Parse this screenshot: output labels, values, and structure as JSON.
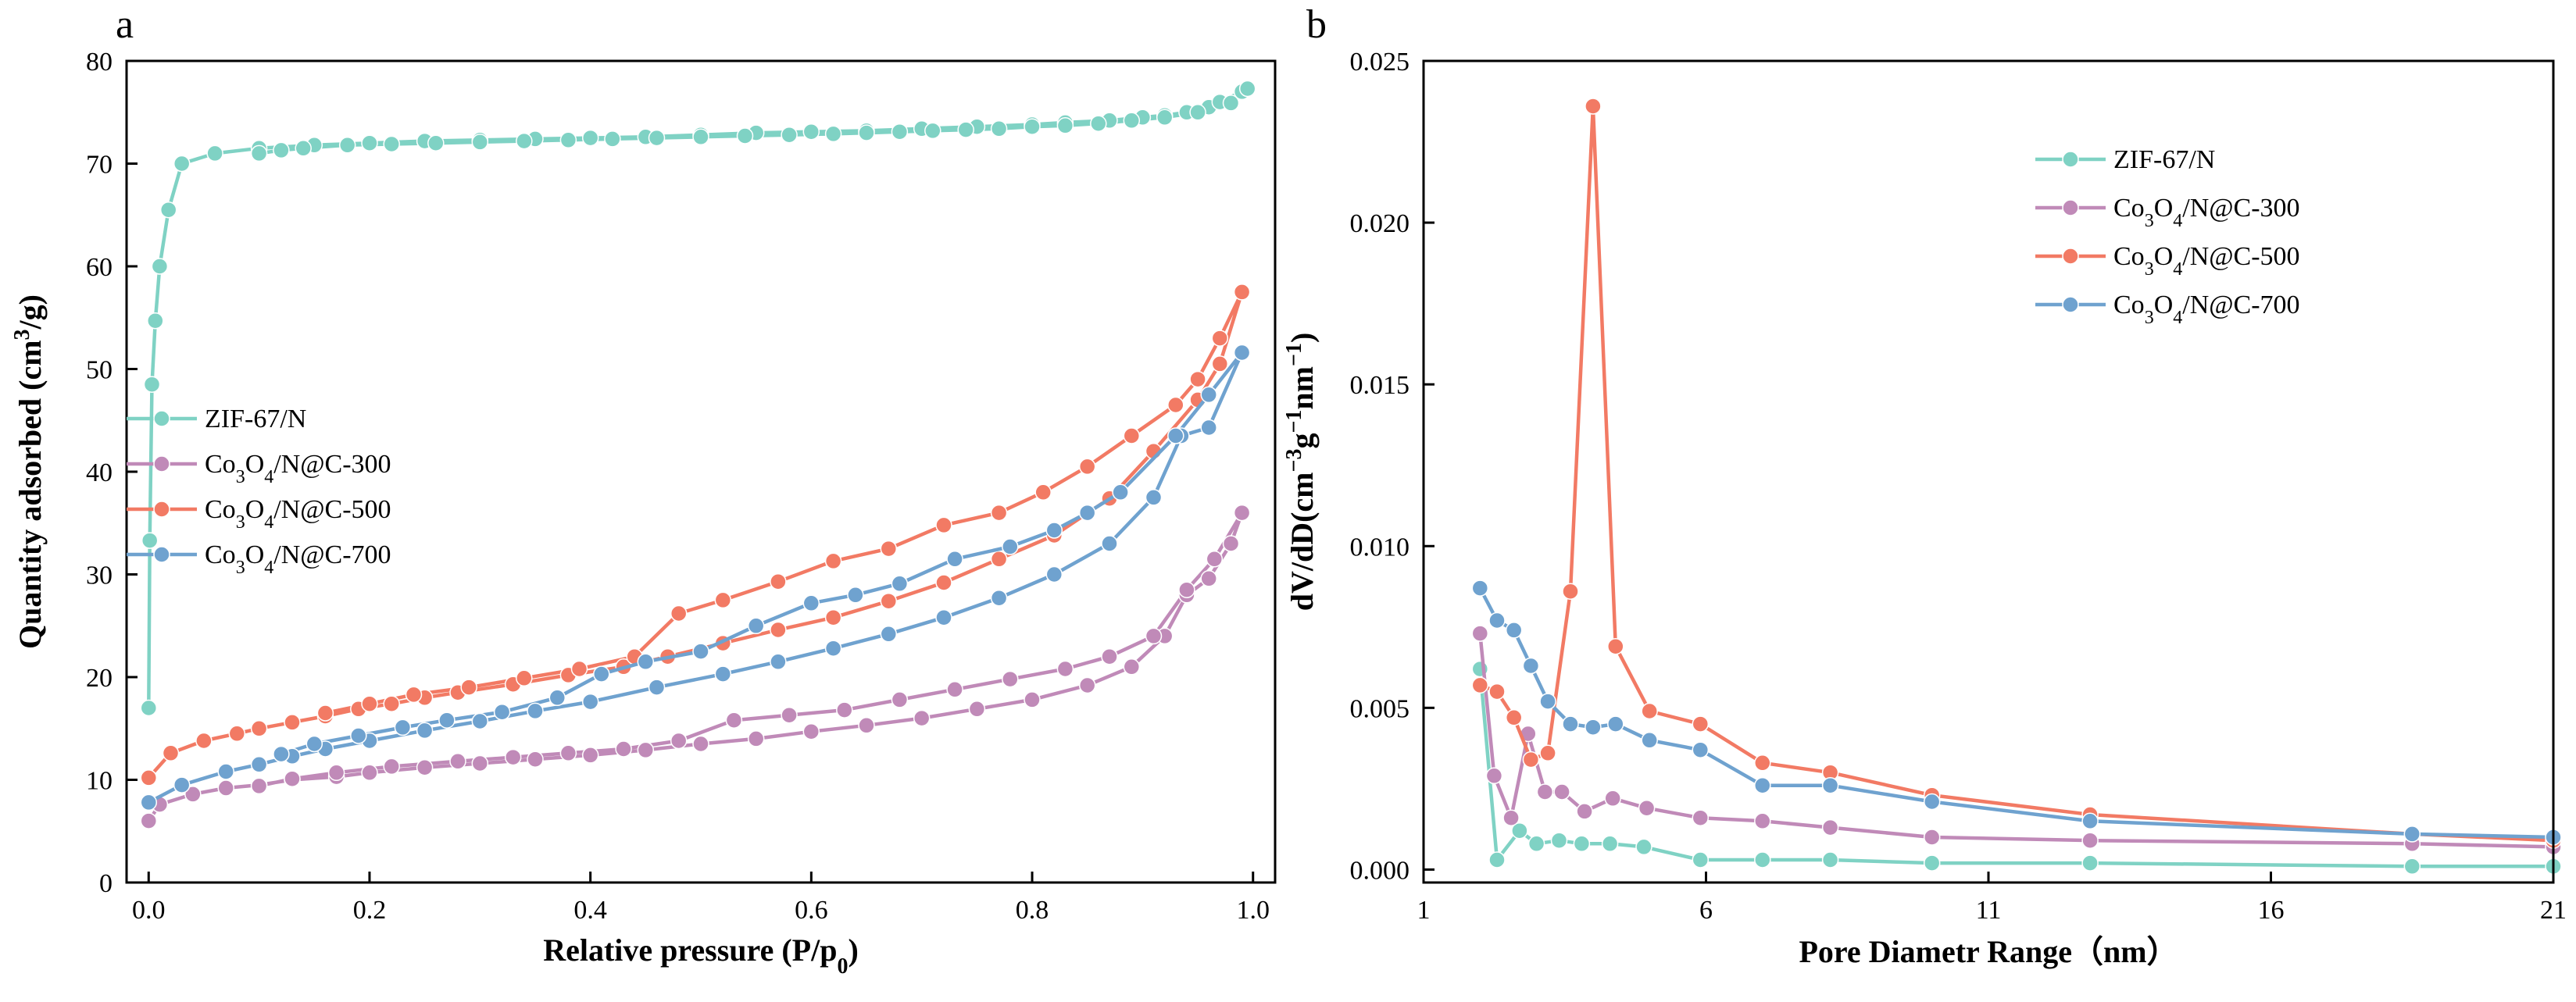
{
  "colors": {
    "zif": "#7fd2c4",
    "c300": "#c08ab8",
    "c500": "#f27a64",
    "c700": "#6fa2cf"
  },
  "chart_data": [
    {
      "panel_label": "a",
      "type": "line",
      "xlabel": "Relative pressure (P/p",
      "xlabel_sub": "0",
      "xlabel_end": ")",
      "ylabel": "Quantity adsorbed (cm",
      "ylabel_sup": "3",
      "ylabel_end": "/g)",
      "xlim": [
        -0.02,
        1.02
      ],
      "ylim": [
        0,
        80
      ],
      "xticks": [
        0.0,
        0.2,
        0.4,
        0.6,
        0.8,
        1.0
      ],
      "xtick_labels": [
        "0.0",
        "0.2",
        "0.4",
        "0.6",
        "0.8",
        "1.0"
      ],
      "yticks": [
        0,
        10,
        20,
        30,
        40,
        50,
        60,
        70,
        80
      ],
      "ytick_labels": [
        "0",
        "10",
        "20",
        "30",
        "40",
        "50",
        "60",
        "70",
        "80"
      ],
      "legend_position": "center-left",
      "series": [
        {
          "name": "ZIF-67/N",
          "name_parts": [
            "ZIF-67/N"
          ],
          "color_key": "zif",
          "x": [
            0.0,
            0.001,
            0.003,
            0.006,
            0.01,
            0.018,
            0.03,
            0.06,
            0.1,
            0.15,
            0.2,
            0.25,
            0.3,
            0.35,
            0.4,
            0.45,
            0.5,
            0.55,
            0.6,
            0.65,
            0.7,
            0.75,
            0.8,
            0.83,
            0.87,
            0.9,
            0.92,
            0.94,
            0.96,
            0.97,
            0.99,
            0.995,
            0.98,
            0.95,
            0.92,
            0.89,
            0.86,
            0.83,
            0.8,
            0.77,
            0.74,
            0.71,
            0.68,
            0.65,
            0.62,
            0.58,
            0.54,
            0.5,
            0.46,
            0.42,
            0.38,
            0.34,
            0.3,
            0.26,
            0.22,
            0.18,
            0.14,
            0.12,
            0.1
          ],
          "y": [
            17.0,
            33.3,
            48.5,
            54.7,
            60.0,
            65.5,
            70.0,
            71.0,
            71.5,
            71.8,
            72.0,
            72.2,
            72.3,
            72.4,
            72.5,
            72.6,
            72.8,
            73.0,
            73.1,
            73.2,
            73.4,
            73.6,
            73.8,
            74.0,
            74.2,
            74.5,
            74.7,
            75.0,
            75.5,
            76.0,
            77.0,
            77.3,
            75.9,
            75.0,
            74.5,
            74.2,
            73.9,
            73.7,
            73.6,
            73.4,
            73.3,
            73.2,
            73.1,
            73.0,
            72.9,
            72.8,
            72.7,
            72.6,
            72.5,
            72.4,
            72.3,
            72.2,
            72.1,
            72.0,
            71.9,
            71.8,
            71.5,
            71.3,
            71.0
          ]
        },
        {
          "name": "Co3O4/N@C-300",
          "name_parts": [
            "Co",
            "3",
            "O",
            "4",
            "/N@C-300"
          ],
          "color_key": "c300",
          "x": [
            0.0,
            0.01,
            0.04,
            0.07,
            0.1,
            0.13,
            0.17,
            0.2,
            0.25,
            0.3,
            0.35,
            0.4,
            0.45,
            0.5,
            0.55,
            0.6,
            0.65,
            0.7,
            0.75,
            0.8,
            0.85,
            0.89,
            0.92,
            0.94,
            0.96,
            0.98,
            0.99,
            0.99,
            0.965,
            0.94,
            0.91,
            0.87,
            0.83,
            0.78,
            0.73,
            0.68,
            0.63,
            0.58,
            0.53,
            0.48,
            0.43,
            0.38,
            0.33,
            0.28,
            0.22,
            0.17,
            0.13,
            0.1
          ],
          "y": [
            6.0,
            7.6,
            8.6,
            9.2,
            9.5,
            10.0,
            10.3,
            10.7,
            11.2,
            11.6,
            12.0,
            12.4,
            12.9,
            13.5,
            14.0,
            14.7,
            15.3,
            16.0,
            16.9,
            17.8,
            19.2,
            21.0,
            24.0,
            28.0,
            29.6,
            33.0,
            36.0,
            36.0,
            31.5,
            28.5,
            24.0,
            22.0,
            20.8,
            19.8,
            18.8,
            17.8,
            16.8,
            16.3,
            15.8,
            13.8,
            13.0,
            12.6,
            12.2,
            11.8,
            11.3,
            10.7,
            10.1,
            9.4
          ]
        },
        {
          "name": "Co3O4/N@C-500",
          "name_parts": [
            "Co",
            "3",
            "O",
            "4",
            "/N@C-500"
          ],
          "color_key": "c500",
          "x": [
            0.0,
            0.02,
            0.05,
            0.08,
            0.1,
            0.13,
            0.16,
            0.19,
            0.22,
            0.25,
            0.28,
            0.33,
            0.38,
            0.43,
            0.47,
            0.52,
            0.57,
            0.62,
            0.67,
            0.72,
            0.77,
            0.82,
            0.87,
            0.91,
            0.95,
            0.97,
            0.99,
            0.99,
            0.97,
            0.95,
            0.93,
            0.89,
            0.85,
            0.81,
            0.77,
            0.72,
            0.67,
            0.62,
            0.57,
            0.52,
            0.48,
            0.44,
            0.39,
            0.34,
            0.29,
            0.24,
            0.2,
            0.16
          ],
          "y": [
            10.2,
            12.6,
            13.8,
            14.5,
            15.0,
            15.6,
            16.2,
            16.9,
            17.4,
            18.0,
            18.5,
            19.3,
            20.2,
            21.0,
            22.0,
            23.3,
            24.6,
            25.8,
            27.4,
            29.2,
            31.5,
            33.8,
            37.4,
            42.0,
            47.0,
            50.5,
            57.5,
            57.5,
            53.0,
            49.0,
            46.5,
            43.5,
            40.5,
            38.0,
            36.0,
            34.8,
            32.5,
            31.3,
            29.3,
            27.5,
            26.2,
            22.0,
            20.8,
            19.9,
            19.0,
            18.3,
            17.4,
            16.5
          ]
        },
        {
          "name": "Co3O4/N@C-700",
          "name_parts": [
            "Co",
            "3",
            "O",
            "4",
            "/N@C-700"
          ],
          "color_key": "c700",
          "x": [
            0.0,
            0.03,
            0.07,
            0.1,
            0.13,
            0.16,
            0.2,
            0.25,
            0.3,
            0.35,
            0.4,
            0.46,
            0.52,
            0.57,
            0.62,
            0.67,
            0.72,
            0.77,
            0.82,
            0.87,
            0.91,
            0.935,
            0.96,
            0.99,
            0.99,
            0.96,
            0.93,
            0.88,
            0.85,
            0.82,
            0.78,
            0.73,
            0.68,
            0.64,
            0.6,
            0.55,
            0.5,
            0.45,
            0.41,
            0.37,
            0.32,
            0.27,
            0.23,
            0.19,
            0.15,
            0.12
          ],
          "y": [
            7.8,
            9.5,
            10.8,
            11.5,
            12.3,
            13.0,
            13.8,
            14.8,
            15.7,
            16.7,
            17.6,
            19.0,
            20.3,
            21.5,
            22.8,
            24.2,
            25.8,
            27.7,
            30.0,
            33.0,
            37.5,
            43.5,
            44.3,
            51.6,
            51.6,
            47.5,
            43.5,
            38.0,
            36.0,
            34.3,
            32.7,
            31.5,
            29.1,
            28.0,
            27.2,
            25.0,
            22.5,
            21.5,
            20.3,
            18.0,
            16.6,
            15.8,
            15.1,
            14.3,
            13.5,
            12.5
          ]
        }
      ]
    },
    {
      "panel_label": "b",
      "type": "line",
      "xlabel": "Pore Diametr Range（nm）",
      "ylabel": "dV/dD(cm",
      "ylabel_sup1": "−3",
      "ylabel_mid": "g",
      "ylabel_sup2": "−1",
      "ylabel_mid2": "nm",
      "ylabel_sup3": "−1",
      "ylabel_end": ")",
      "xlim": [
        1,
        21
      ],
      "ylim": [
        -0.0004,
        0.025
      ],
      "xticks": [
        1,
        6,
        11,
        16,
        21
      ],
      "xtick_labels": [
        "1",
        "6",
        "11",
        "16",
        "21"
      ],
      "yticks": [
        0.0,
        0.005,
        0.01,
        0.015,
        0.02,
        0.025
      ],
      "ytick_labels": [
        "0.000",
        "0.005",
        "0.010",
        "0.015",
        "0.020",
        "0.025"
      ],
      "legend_position": "top-right",
      "series": [
        {
          "name": "ZIF-67/N",
          "name_parts": [
            "ZIF-67/N"
          ],
          "color_key": "zif",
          "x": [
            2.0,
            2.3,
            2.7,
            3.0,
            3.4,
            3.8,
            4.3,
            4.9,
            5.9,
            7.0,
            8.2,
            10.0,
            12.8,
            18.5,
            21.0
          ],
          "y": [
            0.0062,
            0.0003,
            0.0012,
            0.0008,
            0.0009,
            0.0008,
            0.0008,
            0.0007,
            0.0003,
            0.0003,
            0.0003,
            0.0002,
            0.0002,
            0.0001,
            0.0001
          ]
        },
        {
          "name": "Co3O4/N@C-300",
          "name_parts": [
            "Co",
            "3",
            "O",
            "4",
            "/N@C-300"
          ],
          "color_key": "c300",
          "x": [
            2.0,
            2.25,
            2.55,
            2.85,
            3.15,
            3.45,
            3.85,
            4.35,
            4.95,
            5.9,
            7.0,
            8.2,
            10.0,
            12.8,
            18.5,
            21.0
          ],
          "y": [
            0.0073,
            0.0029,
            0.0016,
            0.0042,
            0.0024,
            0.0024,
            0.0018,
            0.0022,
            0.0019,
            0.0016,
            0.0015,
            0.0013,
            0.001,
            0.0009,
            0.0008,
            0.0007
          ]
        },
        {
          "name": "Co3O4/N@C-500",
          "name_parts": [
            "Co",
            "3",
            "O",
            "4",
            "/N@C-500"
          ],
          "color_key": "c500",
          "x": [
            2.0,
            2.3,
            2.6,
            2.9,
            3.2,
            3.6,
            4.0,
            4.4,
            5.0,
            5.9,
            7.0,
            8.2,
            10.0,
            12.8,
            18.5,
            21.0
          ],
          "y": [
            0.0057,
            0.0055,
            0.0047,
            0.0034,
            0.0036,
            0.0086,
            0.0236,
            0.0069,
            0.0049,
            0.0045,
            0.0033,
            0.003,
            0.0023,
            0.0017,
            0.0011,
            0.0009
          ]
        },
        {
          "name": "Co3O4/N@C-700",
          "name_parts": [
            "Co",
            "3",
            "O",
            "4",
            "/N@C-700"
          ],
          "color_key": "c700",
          "x": [
            2.0,
            2.3,
            2.6,
            2.9,
            3.2,
            3.6,
            4.0,
            4.4,
            5.0,
            5.9,
            7.0,
            8.2,
            10.0,
            12.8,
            18.5,
            21.0
          ],
          "y": [
            0.0087,
            0.0077,
            0.0074,
            0.0063,
            0.0052,
            0.0045,
            0.0044,
            0.0045,
            0.004,
            0.0037,
            0.0026,
            0.0026,
            0.0021,
            0.0015,
            0.0011,
            0.001
          ]
        }
      ]
    }
  ]
}
